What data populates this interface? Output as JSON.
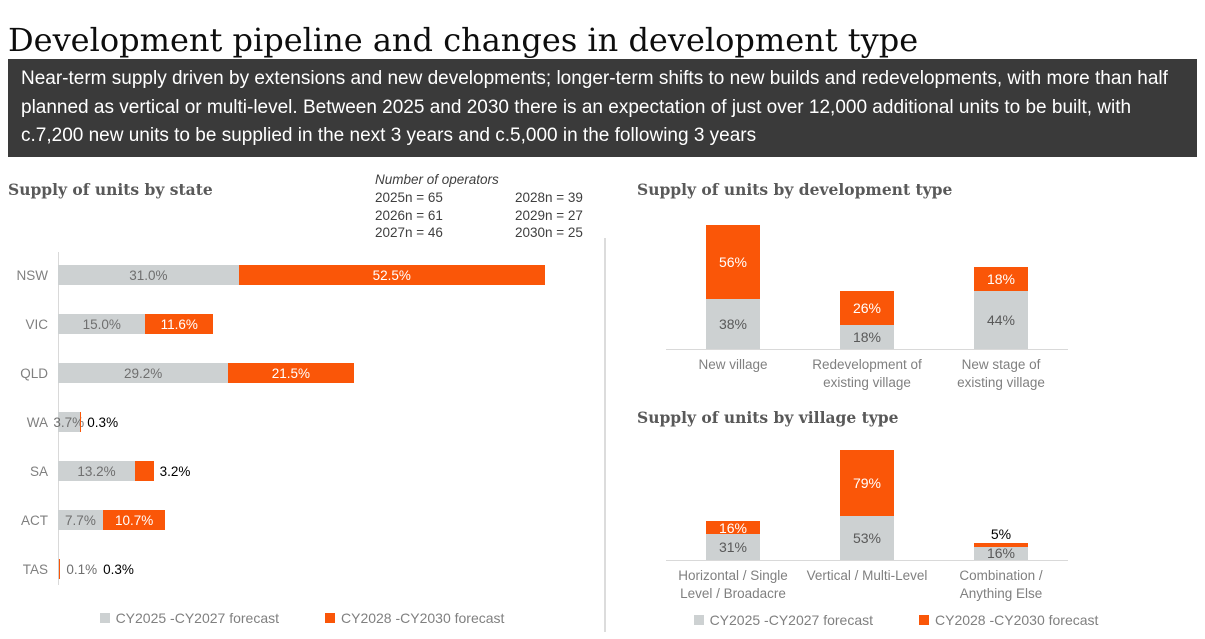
{
  "page": {
    "title": "Development pipeline and changes in development type"
  },
  "banner": {
    "text": "Near-term supply driven by extensions and new developments; longer-term shifts to new builds and redevelopments, with more than half planned as vertical or multi-level. Between 2025 and 2030 there is an expectation of just over 12,000 additional units to be built, with c.7,200 new units to be supplied in the next 3 years and c.5,000 in the following 3 years"
  },
  "colors": {
    "orange_series": "#FA5608",
    "gray_series": "#CDD1D2",
    "banner_bg": "#3A3A3A",
    "axis_line": "#D9D9D9",
    "label_gray": "#808080",
    "title_gray": "#595959"
  },
  "operators": {
    "title": "Number of operators",
    "left": [
      "2025n = 65",
      "2026n = 61",
      "2027n = 46"
    ],
    "right": [
      "2028n = 39",
      "2029n = 27",
      "2030n = 25"
    ]
  },
  "legend": {
    "series1": "CY2025 -CY2027 forecast",
    "series2": "CY2028 -CY2030 forecast"
  },
  "chart_data": [
    {
      "type": "bar",
      "orientation": "horizontal",
      "stacked": true,
      "title": "Supply of units by state",
      "categories": [
        "NSW",
        "VIC",
        "QLD",
        "WA",
        "SA",
        "ACT",
        "TAS"
      ],
      "series": [
        {
          "name": "CY2025 -CY2027 forecast",
          "values": [
            31.0,
            15.0,
            29.2,
            3.7,
            13.2,
            7.7,
            0.1
          ]
        },
        {
          "name": "CY2028 -CY2030 forecast",
          "values": [
            52.5,
            11.6,
            21.5,
            0.3,
            3.2,
            10.7,
            0.3
          ]
        }
      ],
      "value_format": "one_decimal_percent",
      "legend_position": "bottom",
      "grid": false
    },
    {
      "type": "bar",
      "orientation": "vertical",
      "stacked": true,
      "title": "Supply of units by development type",
      "categories": [
        "New village",
        "Redevelopment of existing village",
        "New stage of existing village"
      ],
      "series": [
        {
          "name": "CY2025 -CY2027 forecast",
          "values": [
            38,
            18,
            44
          ]
        },
        {
          "name": "CY2028 -CY2030 forecast",
          "values": [
            56,
            26,
            18
          ]
        }
      ],
      "value_format": "integer_percent",
      "grid": false
    },
    {
      "type": "bar",
      "orientation": "vertical",
      "stacked": true,
      "title": "Supply of units by village type",
      "categories": [
        "Horizontal / Single Level / Broadacre",
        "Vertical / Multi-Level",
        "Combination / Anything Else"
      ],
      "series": [
        {
          "name": "CY2025 -CY2027 forecast",
          "values": [
            31,
            53,
            16
          ]
        },
        {
          "name": "CY2028 -CY2030 forecast",
          "values": [
            16,
            79,
            5
          ]
        }
      ],
      "value_format": "integer_percent",
      "legend_position": "bottom",
      "grid": false
    }
  ]
}
